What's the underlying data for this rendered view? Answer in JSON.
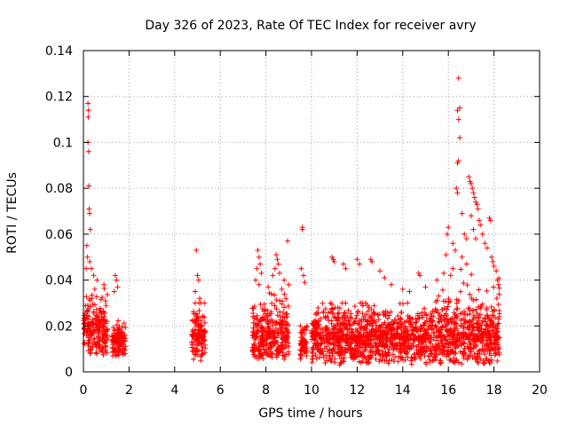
{
  "chart_data": {
    "type": "scatter",
    "title": "Day 326 of 2023, Rate Of TEC Index for receiver avry",
    "xlabel": "GPS time / hours",
    "ylabel": "ROTI / TECUs",
    "xlim": [
      0,
      20
    ],
    "ylim": [
      0,
      0.14
    ],
    "xticks": [
      "0",
      "2",
      "4",
      "6",
      "8",
      "10",
      "12",
      "14",
      "16",
      "18",
      "20"
    ],
    "yticks": [
      "0",
      "0.02",
      "0.04",
      "0.06",
      "0.08",
      "0.1",
      "0.12",
      "0.14"
    ],
    "grid": true,
    "marker": "+",
    "color": "#ff0000",
    "series": [
      {
        "name": "ROTI",
        "segments": [
          {
            "x_start": 0.0,
            "x_end": 1.05,
            "y_low": 0.006,
            "y_base": 0.018,
            "y_high": 0.04
          },
          {
            "x_start": 1.25,
            "x_end": 1.85,
            "y_low": 0.006,
            "y_base": 0.013,
            "y_high": 0.025
          },
          {
            "x_start": 4.75,
            "x_end": 5.35,
            "y_low": 0.004,
            "y_base": 0.015,
            "y_high": 0.03
          },
          {
            "x_start": 7.4,
            "x_end": 9.0,
            "y_low": 0.004,
            "y_base": 0.015,
            "y_high": 0.04
          },
          {
            "x_start": 9.5,
            "x_end": 9.8,
            "y_low": 0.005,
            "y_base": 0.012,
            "y_high": 0.02
          },
          {
            "x_start": 10.0,
            "x_end": 15.4,
            "y_low": 0.003,
            "y_base": 0.014,
            "y_high": 0.03
          },
          {
            "x_start": 15.4,
            "x_end": 18.25,
            "y_low": 0.003,
            "y_base": 0.015,
            "y_high": 0.045
          }
        ],
        "spikes": [
          [
            0.2,
            0.117
          ],
          [
            0.22,
            0.114
          ],
          [
            0.21,
            0.111
          ],
          [
            0.2,
            0.1
          ],
          [
            0.23,
            0.096
          ],
          [
            0.24,
            0.081
          ],
          [
            0.25,
            0.071
          ],
          [
            0.27,
            0.069
          ],
          [
            0.3,
            0.062
          ],
          [
            0.15,
            0.055
          ],
          [
            0.18,
            0.05
          ],
          [
            0.28,
            0.048
          ],
          [
            0.12,
            0.045
          ],
          [
            0.35,
            0.045
          ],
          [
            0.45,
            0.042
          ],
          [
            0.6,
            0.04
          ],
          [
            0.9,
            0.038
          ],
          [
            0.5,
            0.036
          ],
          [
            1.4,
            0.042
          ],
          [
            1.45,
            0.04
          ],
          [
            1.5,
            0.037
          ],
          [
            1.35,
            0.035
          ],
          [
            4.95,
            0.053
          ],
          [
            5.0,
            0.042
          ],
          [
            5.05,
            0.04
          ],
          [
            4.9,
            0.035
          ],
          [
            5.1,
            0.032
          ],
          [
            5.15,
            0.03
          ],
          [
            7.65,
            0.053
          ],
          [
            7.7,
            0.05
          ],
          [
            7.75,
            0.047
          ],
          [
            7.6,
            0.045
          ],
          [
            7.8,
            0.043
          ],
          [
            7.55,
            0.04
          ],
          [
            7.7,
            0.038
          ],
          [
            8.45,
            0.051
          ],
          [
            8.5,
            0.049
          ],
          [
            8.55,
            0.047
          ],
          [
            8.4,
            0.045
          ],
          [
            8.6,
            0.043
          ],
          [
            8.95,
            0.057
          ],
          [
            8.3,
            0.042
          ],
          [
            8.8,
            0.04
          ],
          [
            9.0,
            0.038
          ],
          [
            8.1,
            0.037
          ],
          [
            8.7,
            0.036
          ],
          [
            9.6,
            0.063
          ],
          [
            9.6,
            0.062
          ],
          [
            9.55,
            0.045
          ],
          [
            9.65,
            0.042
          ],
          [
            9.7,
            0.039
          ],
          [
            10.9,
            0.05
          ],
          [
            10.95,
            0.049
          ],
          [
            11.0,
            0.048
          ],
          [
            11.4,
            0.047
          ],
          [
            11.5,
            0.045
          ],
          [
            12.0,
            0.049
          ],
          [
            12.1,
            0.047
          ],
          [
            12.6,
            0.049
          ],
          [
            12.65,
            0.048
          ],
          [
            13.0,
            0.044
          ],
          [
            13.2,
            0.041
          ],
          [
            13.5,
            0.038
          ],
          [
            14.0,
            0.036
          ],
          [
            14.3,
            0.035
          ],
          [
            14.7,
            0.043
          ],
          [
            14.75,
            0.042
          ],
          [
            15.0,
            0.037
          ],
          [
            15.5,
            0.04
          ],
          [
            15.8,
            0.043
          ],
          [
            15.9,
            0.051
          ],
          [
            15.95,
            0.06
          ],
          [
            16.0,
            0.063
          ],
          [
            16.2,
            0.056
          ],
          [
            16.3,
            0.053
          ],
          [
            16.35,
            0.08
          ],
          [
            16.4,
            0.078
          ],
          [
            16.4,
            0.091
          ],
          [
            16.45,
            0.092
          ],
          [
            16.5,
            0.102
          ],
          [
            16.45,
            0.11
          ],
          [
            16.4,
            0.114
          ],
          [
            16.5,
            0.115
          ],
          [
            16.45,
            0.128
          ],
          [
            16.6,
            0.069
          ],
          [
            16.7,
            0.06
          ],
          [
            16.8,
            0.058
          ],
          [
            16.9,
            0.085
          ],
          [
            16.95,
            0.083
          ],
          [
            17.0,
            0.082
          ],
          [
            17.05,
            0.08
          ],
          [
            17.1,
            0.078
          ],
          [
            17.15,
            0.076
          ],
          [
            17.2,
            0.074
          ],
          [
            17.25,
            0.073
          ],
          [
            17.3,
            0.071
          ],
          [
            17.0,
            0.068
          ],
          [
            17.35,
            0.066
          ],
          [
            17.4,
            0.064
          ],
          [
            17.1,
            0.062
          ],
          [
            17.5,
            0.06
          ],
          [
            17.2,
            0.058
          ],
          [
            17.6,
            0.056
          ],
          [
            17.7,
            0.054
          ],
          [
            17.8,
            0.067
          ],
          [
            17.85,
            0.066
          ],
          [
            17.9,
            0.05
          ],
          [
            17.95,
            0.048
          ],
          [
            18.0,
            0.046
          ],
          [
            18.1,
            0.044
          ],
          [
            18.15,
            0.04
          ],
          [
            18.2,
            0.038
          ],
          [
            16.6,
            0.05
          ],
          [
            16.8,
            0.047
          ],
          [
            16.2,
            0.045
          ],
          [
            16.1,
            0.042
          ]
        ]
      }
    ]
  }
}
